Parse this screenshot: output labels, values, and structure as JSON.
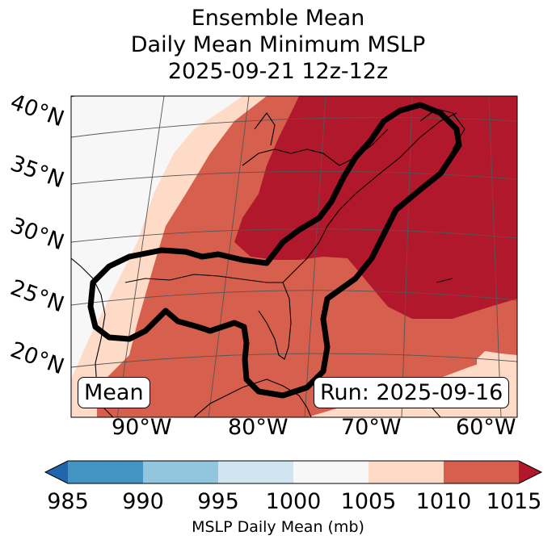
{
  "title": {
    "line1": "Ensemble Mean",
    "line2": "Daily Mean Minimum MSLP",
    "line3": "2025-09-21 12z-12z"
  },
  "map": {
    "lat_labels": [
      "40°N",
      "35°N",
      "30°N",
      "25°N",
      "20°N"
    ],
    "lon_labels": [
      "90°W",
      "80°W",
      "70°W",
      "60°W"
    ],
    "mean_label": "Mean",
    "run_label": "Run: 2025-09-16"
  },
  "colorbar": {
    "ticks": [
      "985",
      "990",
      "995",
      "1000",
      "1005",
      "1010",
      "1015"
    ],
    "label": "MSLP Daily Mean (mb)",
    "colors": [
      "#2166ac",
      "#4393c3",
      "#92c5de",
      "#d1e5f0",
      "#f7f7f7",
      "#fddbc7",
      "#d6604d",
      "#b2182b"
    ]
  }
}
